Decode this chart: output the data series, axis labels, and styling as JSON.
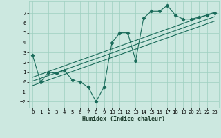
{
  "xlabel": "Humidex (Indice chaleur)",
  "background_color": "#cce8e0",
  "grid_color": "#9ecfbf",
  "line_color": "#1a6b5a",
  "xlim": [
    -0.5,
    23.5
  ],
  "ylim": [
    -2.6,
    8.2
  ],
  "xticks": [
    0,
    1,
    2,
    3,
    4,
    5,
    6,
    7,
    8,
    9,
    10,
    11,
    12,
    13,
    14,
    15,
    16,
    17,
    18,
    19,
    20,
    21,
    22,
    23
  ],
  "yticks": [
    -2,
    -1,
    0,
    1,
    2,
    3,
    4,
    5,
    6,
    7
  ],
  "scatter_x": [
    0,
    1,
    2,
    3,
    4,
    5,
    6,
    7,
    8,
    9,
    10,
    11,
    12,
    13,
    14,
    15,
    16,
    17,
    18,
    19,
    20,
    21,
    22,
    23
  ],
  "scatter_y": [
    2.7,
    0.0,
    1.0,
    0.9,
    1.2,
    0.2,
    0.0,
    -0.5,
    -2.0,
    -0.5,
    4.0,
    5.0,
    5.0,
    2.2,
    6.5,
    7.2,
    7.2,
    7.8,
    6.8,
    6.4,
    6.4,
    6.6,
    6.8,
    7.0
  ],
  "reg_lines": [
    {
      "x": [
        0,
        23
      ],
      "y": [
        0.5,
        7.1
      ]
    },
    {
      "x": [
        0,
        23
      ],
      "y": [
        0.1,
        6.65
      ]
    },
    {
      "x": [
        0,
        23
      ],
      "y": [
        -0.35,
        6.2
      ]
    }
  ],
  "xlabel_fontsize": 6.0,
  "tick_fontsize": 5.2
}
